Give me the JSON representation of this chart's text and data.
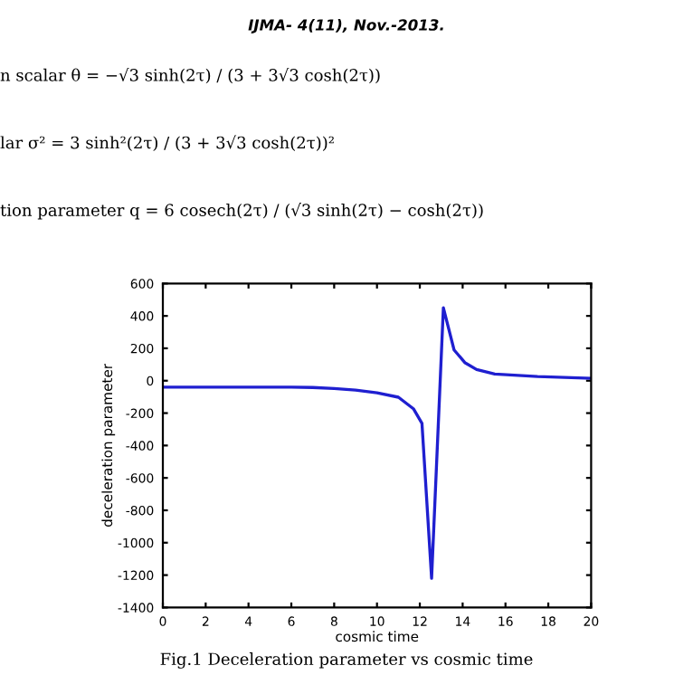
{
  "chart_data": {
    "type": "line",
    "subtitle": "IJMA- 4(11), Nov.-2013.",
    "annotations": [
      "n scalar θ = −√3 sinh(2τ) / (3 + 3√3 cosh(2τ))",
      "lar σ² = 3 sinh²(2τ) / (3 + 3√3 cosh(2τ))²",
      "tion parameter q = 6 cosech(2τ) / (√3 sinh(2τ) − cosh(2τ))",
      "Fig.1 Deceleration parameter vs cosmic time"
    ],
    "xlabel": "cosmic time",
    "ylabel": "deceleration parameter",
    "x": [
      0,
      2,
      4,
      6,
      7,
      8,
      9,
      10,
      11,
      11.7,
      12.1,
      12.55,
      13.1,
      13.6,
      14.1,
      14.65,
      15.5,
      17.5,
      20
    ],
    "series": [
      {
        "color": "#1f1fd0",
        "values": [
          -40,
          -40,
          -40,
          -40,
          -42,
          -48,
          -58,
          -75,
          -102,
          -173,
          -263,
          -1220,
          450,
          190,
          112,
          69,
          41,
          26,
          15
        ]
      }
    ],
    "xlim": [
      0,
      20
    ],
    "ylim": [
      -1400,
      600
    ],
    "xticks": [
      0,
      2,
      4,
      6,
      8,
      10,
      12,
      14,
      16,
      18,
      20
    ],
    "yticks": [
      -1400,
      -1200,
      -1000,
      -800,
      -600,
      -400,
      -200,
      0,
      200,
      400,
      600
    ],
    "grid": false,
    "legend": false,
    "marker": "none",
    "line_style": "solid"
  }
}
